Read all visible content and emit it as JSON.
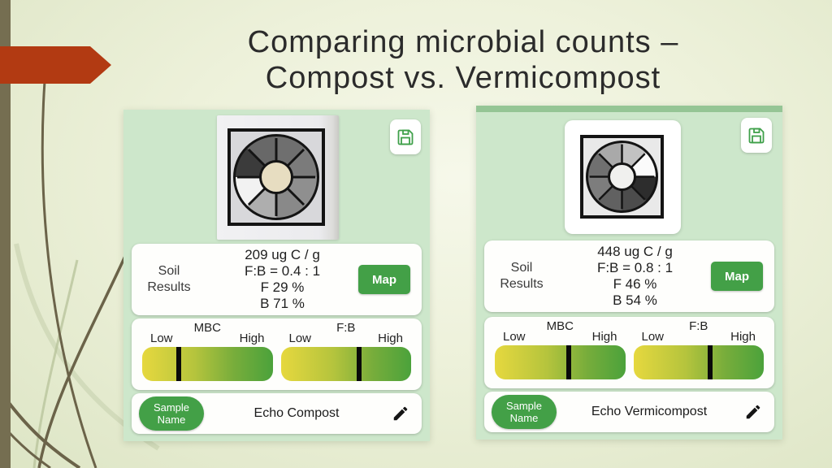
{
  "slide": {
    "title_line1": "Comparing microbial counts –",
    "title_line2": "Compost vs. Vermicompost"
  },
  "icons": {
    "save_icon": "floppy-disk",
    "edit_icon": "pencil"
  },
  "colors": {
    "panel_green": "#cde7cb",
    "accent_green": "#43a047",
    "gauge_yellow": "#e6d83e",
    "gauge_green": "#4ba23b",
    "arrow_red": "#b23a12",
    "stripe_olive": "#756e51",
    "title_text": "#2b2b2b"
  },
  "panels": [
    {
      "soil_results": {
        "label_line1": "Soil",
        "label_line2": "Results",
        "lines": [
          "209 ug C / g",
          "F:B = 0.4 : 1",
          "F 29 %",
          "B 71 %"
        ],
        "map_label": "Map"
      },
      "gauges": [
        {
          "title": "MBC",
          "low_label": "Low",
          "high_label": "High",
          "marker_pct": 28
        },
        {
          "title": "F:B",
          "low_label": "Low",
          "high_label": "High",
          "marker_pct": 60
        }
      ],
      "sample": {
        "label_line1": "Sample",
        "label_line2": "Name",
        "value": "Echo Compost"
      },
      "wheel": {
        "sectors": [
          "#6f6f6f",
          "#7b7b7b",
          "#8f8f8f",
          "#898989",
          "#aeaeae",
          "#f2f2f2",
          "#3b3b3b",
          "#686868"
        ],
        "center": "#e7ddc1"
      }
    },
    {
      "soil_results": {
        "label_line1": "Soil",
        "label_line2": "Results",
        "lines": [
          "448 ug C / g",
          "F:B = 0.8 : 1",
          "F 46 %",
          "B 54 %"
        ],
        "map_label": "Map"
      },
      "gauges": [
        {
          "title": "MBC",
          "low_label": "Low",
          "high_label": "High",
          "marker_pct": 57
        },
        {
          "title": "F:B",
          "low_label": "Low",
          "high_label": "High",
          "marker_pct": 59
        }
      ],
      "sample": {
        "label_line1": "Sample",
        "label_line2": "Name",
        "value": "Echo Vermicompost"
      },
      "wheel": {
        "sectors": [
          "#c2c2c2",
          "#fbfbfb",
          "#2d2d2d",
          "#4c4c4c",
          "#616161",
          "#7d7d7d",
          "#707070",
          "#a9a9a9"
        ],
        "center": "#f0f0ee"
      }
    }
  ]
}
